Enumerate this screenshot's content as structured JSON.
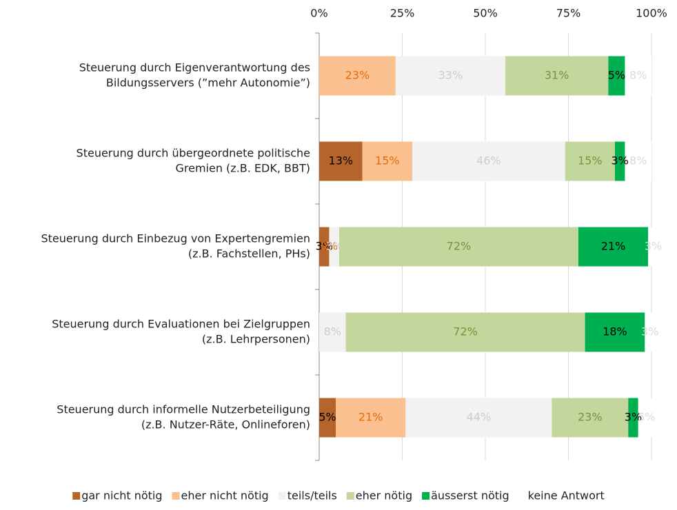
{
  "chart_data": {
    "type": "stacked_barh",
    "categories": [
      [
        "Steuerung durch Eigenverantwortung des",
        "Bildungsservers (”mehr Autonomie”)"
      ],
      [
        "Steuerung durch übergeordnete politische",
        "Gremien (z.B. EDK, BBT)"
      ],
      [
        "Steuerung durch Einbezug von Expertengremien",
        "(z.B. Fachstellen, PHs)"
      ],
      [
        "Steuerung durch Evaluationen bei Zielgruppen",
        "(z.B. Lehrpersonen)"
      ],
      [
        "Steuerung durch informelle Nutzerbeteiligung",
        "(z.B. Nutzer-Räte, Onlineforen)"
      ]
    ],
    "series": [
      {
        "name": "gar nicht nötig",
        "color": "#b5652b",
        "label_color": "#000000",
        "values": [
          null,
          13,
          3,
          null,
          5
        ],
        "value_labels": [
          null,
          "13%",
          "3%",
          null,
          "5%"
        ]
      },
      {
        "name": "eher nicht nötig",
        "color": "#fac090",
        "label_color": "#e46c0a",
        "values": [
          23,
          15,
          0,
          null,
          21
        ],
        "value_labels": [
          "23%",
          "15%",
          "0%",
          null,
          "21%"
        ]
      },
      {
        "name": "teils/teils",
        "color": "#f2f2f2",
        "label_color": "#cccccc",
        "values": [
          33,
          46,
          3,
          8,
          44
        ],
        "value_labels": [
          "33%",
          "46%",
          "3%",
          "8%",
          "44%"
        ]
      },
      {
        "name": "eher nötig",
        "color": "#c3d69b",
        "label_color": "#77933c",
        "values": [
          31,
          15,
          72,
          72,
          23
        ],
        "value_labels": [
          "31%",
          "15%",
          "72%",
          "72%",
          "23%"
        ]
      },
      {
        "name": "äusserst nötig",
        "color": "#00b050",
        "label_color": "#000000",
        "values": [
          5,
          3,
          21,
          18,
          3
        ],
        "value_labels": [
          "5%",
          "3%",
          "21%",
          "18%",
          "3%"
        ]
      },
      {
        "name": "keine Antwort",
        "color": "#ffffff",
        "label_color": "#d9d9d9",
        "values": [
          8,
          8,
          3,
          3,
          5
        ],
        "value_labels": [
          "8%",
          "8%",
          "3%",
          "3%",
          "5%"
        ]
      }
    ],
    "xlim": [
      0,
      100
    ],
    "xticks": [
      {
        "value": 0,
        "label": "0%"
      },
      {
        "value": 25,
        "label": "25%"
      },
      {
        "value": 50,
        "label": "50%"
      },
      {
        "value": 75,
        "label": "75%"
      },
      {
        "value": 100,
        "label": "100%"
      }
    ],
    "grid": true,
    "legend": "bottom"
  }
}
